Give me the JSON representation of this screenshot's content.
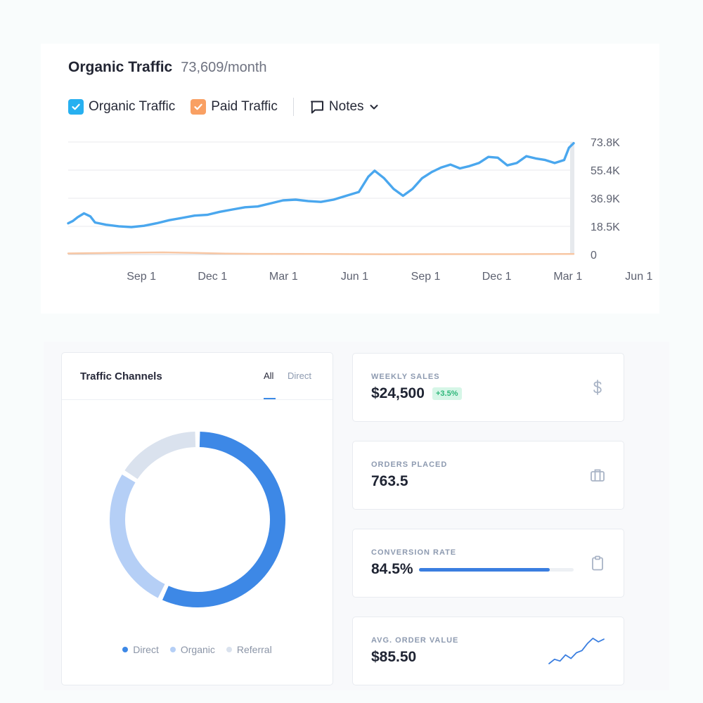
{
  "traffic": {
    "title": "Organic Traffic",
    "value": "73,609/month",
    "legend": [
      {
        "label": "Organic Traffic",
        "color": "#27b0f0",
        "checked": true
      },
      {
        "label": "Paid Traffic",
        "color": "#f9a063",
        "checked": true
      }
    ],
    "notes_label": "Notes",
    "icons": {
      "check": "check-icon",
      "notes": "comment-icon",
      "chevron": "chevron-down-icon"
    }
  },
  "chart_data": {
    "type": "line",
    "x_ticks": [
      "Sep 1",
      "Dec 1",
      "Mar 1",
      "Jun 1",
      "Sep 1",
      "Dec 1",
      "Mar 1",
      "Jun 1"
    ],
    "y_ticks": [
      "73.8K",
      "55.4K",
      "36.9K",
      "18.5K",
      "0"
    ],
    "ylim": [
      0,
      73800
    ],
    "grid": true,
    "series": [
      {
        "name": "Organic Traffic",
        "color": "#4aa7ee",
        "points": [
          [
            0,
            20500
          ],
          [
            0.15,
            22000
          ],
          [
            0.3,
            24500
          ],
          [
            0.5,
            27000
          ],
          [
            0.7,
            25000
          ],
          [
            0.85,
            21000
          ],
          [
            1.2,
            19500
          ],
          [
            1.6,
            18500
          ],
          [
            2.0,
            18000
          ],
          [
            2.4,
            18800
          ],
          [
            2.8,
            20500
          ],
          [
            3.2,
            22500
          ],
          [
            3.6,
            24000
          ],
          [
            4.0,
            25500
          ],
          [
            4.4,
            26000
          ],
          [
            4.8,
            28000
          ],
          [
            5.2,
            29500
          ],
          [
            5.6,
            31000
          ],
          [
            6.0,
            31500
          ],
          [
            6.4,
            33500
          ],
          [
            6.8,
            35500
          ],
          [
            7.2,
            36000
          ],
          [
            7.6,
            35000
          ],
          [
            8.0,
            34500
          ],
          [
            8.4,
            36000
          ],
          [
            8.8,
            38500
          ],
          [
            9.2,
            41000
          ],
          [
            9.5,
            51000
          ],
          [
            9.7,
            55000
          ],
          [
            10.0,
            50000
          ],
          [
            10.3,
            43000
          ],
          [
            10.6,
            38500
          ],
          [
            10.9,
            43000
          ],
          [
            11.2,
            50000
          ],
          [
            11.5,
            54000
          ],
          [
            11.8,
            57000
          ],
          [
            12.1,
            59000
          ],
          [
            12.4,
            56500
          ],
          [
            12.7,
            58000
          ],
          [
            13.0,
            60000
          ],
          [
            13.3,
            64000
          ],
          [
            13.6,
            63500
          ],
          [
            13.9,
            58500
          ],
          [
            14.2,
            60000
          ],
          [
            14.5,
            64500
          ],
          [
            14.8,
            63000
          ],
          [
            15.1,
            62000
          ],
          [
            15.4,
            60000
          ],
          [
            15.7,
            62000
          ],
          [
            15.85,
            70000
          ],
          [
            16.0,
            73000
          ]
        ]
      },
      {
        "name": "Paid Traffic",
        "color": "#f8c7a4",
        "points": [
          [
            0,
            700
          ],
          [
            1.0,
            900
          ],
          [
            2.0,
            1200
          ],
          [
            3.0,
            1400
          ],
          [
            4.0,
            1000
          ],
          [
            5.0,
            600
          ],
          [
            6.0,
            400
          ],
          [
            8.0,
            300
          ],
          [
            10.0,
            200
          ],
          [
            12.0,
            250
          ],
          [
            14.0,
            250
          ],
          [
            16.0,
            300
          ]
        ]
      }
    ]
  },
  "channels": {
    "title": "Traffic Channels",
    "tabs": [
      {
        "label": "All",
        "active": true
      },
      {
        "label": "Direct",
        "active": false
      }
    ],
    "chart_data": {
      "type": "pie",
      "donut": true,
      "slices": [
        {
          "label": "Direct",
          "value": 57,
          "color": "#3d88e6"
        },
        {
          "label": "Organic",
          "value": 27,
          "color": "#b5cff6"
        },
        {
          "label": "Referral",
          "value": 16,
          "color": "#dae2ee"
        }
      ]
    }
  },
  "stats": [
    {
      "label": "WEEKLY SALES",
      "value": "$24,500",
      "badge": "+3.5%",
      "icon": "dollar-icon"
    },
    {
      "label": "ORDERS PLACED",
      "value": "763.5",
      "icon": "briefcase-icon"
    },
    {
      "label": "CONVERSION RATE",
      "value": "84.5%",
      "progress": 0.845,
      "icon": "clipboard-icon"
    },
    {
      "label": "AVG. ORDER VALUE",
      "value": "$85.50",
      "sparkline": [
        3,
        4,
        3.6,
        5,
        4.2,
        5.5,
        6,
        7.6,
        8.8,
        8,
        8.6
      ]
    }
  ]
}
